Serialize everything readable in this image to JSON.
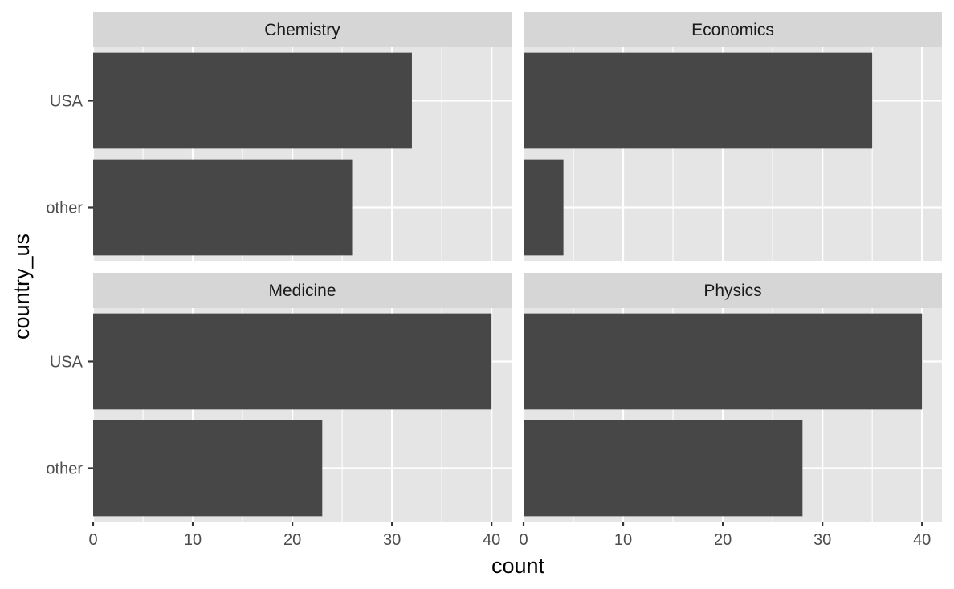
{
  "chart_data": {
    "type": "bar",
    "orientation": "horizontal",
    "layout": "facet-wrap 2x2",
    "xlabel": "count",
    "ylabel": "country_us",
    "xlim": [
      0,
      42
    ],
    "x_ticks": [
      0,
      10,
      20,
      30,
      40
    ],
    "categories": [
      "USA",
      "other"
    ],
    "grid": true,
    "colors": {
      "bar": "#474747",
      "panel_bg": "#e5e5e5",
      "strip_bg": "#d6d6d6",
      "grid": "#ffffff"
    },
    "facets": [
      {
        "name": "Chemistry",
        "values": [
          32,
          26
        ]
      },
      {
        "name": "Economics",
        "values": [
          35,
          4
        ]
      },
      {
        "name": "Medicine",
        "values": [
          40,
          23
        ]
      },
      {
        "name": "Physics",
        "values": [
          40,
          28
        ]
      }
    ]
  }
}
